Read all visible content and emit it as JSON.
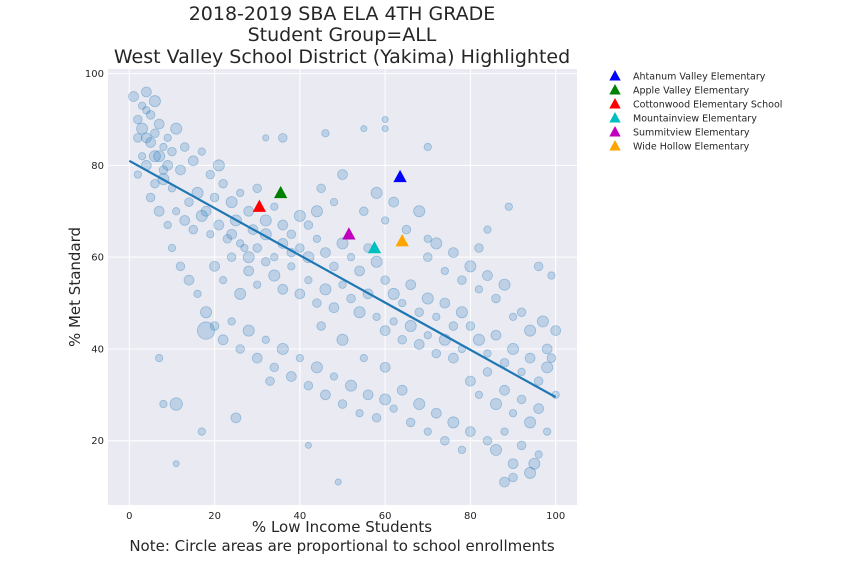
{
  "chart_data": {
    "type": "scatter",
    "title_lines": [
      "2018-2019 SBA ELA 4TH GRADE",
      "Student Group=ALL",
      "West Valley School District (Yakima) Highlighted"
    ],
    "xlabel": "% Low Income Students",
    "xlabel_note": "Note: Circle areas are proportional to school enrollments",
    "ylabel": "% Met Standard",
    "xlim": [
      -5,
      105
    ],
    "ylim": [
      6,
      101
    ],
    "xticks": [
      "0",
      "20",
      "40",
      "60",
      "80",
      "100"
    ],
    "yticks": [
      "20",
      "40",
      "60",
      "80",
      "100"
    ],
    "grid": true,
    "background_color": "#eaeaf2",
    "scatter_color": "#1f77b4",
    "scatter_opacity": 0.22,
    "regression_line": {
      "x": [
        0,
        100
      ],
      "y": [
        81,
        29.5
      ],
      "color": "#1f77b4"
    },
    "highlighted_schools": [
      {
        "name": "Ahtanum Valley Elementary",
        "x": 63.5,
        "y": 77.5,
        "color": "#0000ff"
      },
      {
        "name": "Apple Valley Elementary",
        "x": 35.5,
        "y": 74,
        "color": "#008000"
      },
      {
        "name": "Cottonwood Elementary School",
        "x": 30.5,
        "y": 71,
        "color": "#ff0000"
      },
      {
        "name": "Mountainview Elementary",
        "x": 57.5,
        "y": 62,
        "color": "#00bfbf"
      },
      {
        "name": "Summitview Elementary",
        "x": 51.5,
        "y": 65,
        "color": "#bf00bf"
      },
      {
        "name": "Wide Hollow Elementary",
        "x": 64,
        "y": 63.5,
        "color": "#ffa500"
      }
    ],
    "legend_placement": "outside-right-top",
    "schools": [
      [
        1,
        95,
        8
      ],
      [
        2,
        90,
        7
      ],
      [
        3,
        88,
        9
      ],
      [
        4,
        92,
        6
      ],
      [
        5,
        85,
        8
      ],
      [
        6,
        87,
        7
      ],
      [
        7,
        82,
        9
      ],
      [
        8,
        84,
        6
      ],
      [
        9,
        80,
        8
      ],
      [
        10,
        83,
        7
      ],
      [
        2,
        78,
        6
      ],
      [
        4,
        80,
        8
      ],
      [
        6,
        76,
        7
      ],
      [
        8,
        77,
        9
      ],
      [
        10,
        75,
        6
      ],
      [
        12,
        79,
        8
      ],
      [
        14,
        72,
        7
      ],
      [
        16,
        74,
        9
      ],
      [
        18,
        70,
        8
      ],
      [
        20,
        73,
        7
      ],
      [
        3,
        93,
        6
      ],
      [
        5,
        91,
        7
      ],
      [
        7,
        89,
        8
      ],
      [
        9,
        86,
        6
      ],
      [
        11,
        88,
        9
      ],
      [
        13,
        84,
        7
      ],
      [
        15,
        81,
        8
      ],
      [
        17,
        83,
        6
      ],
      [
        19,
        78,
        7
      ],
      [
        21,
        80,
        9
      ],
      [
        11,
        70,
        6
      ],
      [
        13,
        68,
        8
      ],
      [
        15,
        66,
        7
      ],
      [
        17,
        69,
        9
      ],
      [
        19,
        65,
        6
      ],
      [
        21,
        67,
        8
      ],
      [
        23,
        64,
        7
      ],
      [
        25,
        68,
        9
      ],
      [
        27,
        62,
        6
      ],
      [
        29,
        66,
        8
      ],
      [
        22,
        76,
        7
      ],
      [
        24,
        72,
        9
      ],
      [
        26,
        74,
        6
      ],
      [
        28,
        70,
        8
      ],
      [
        30,
        75,
        7
      ],
      [
        32,
        68,
        9
      ],
      [
        34,
        71,
        6
      ],
      [
        36,
        67,
        8
      ],
      [
        38,
        65,
        7
      ],
      [
        40,
        69,
        9
      ],
      [
        20,
        58,
        8
      ],
      [
        22,
        55,
        6
      ],
      [
        24,
        60,
        7
      ],
      [
        26,
        52,
        9
      ],
      [
        28,
        57,
        8
      ],
      [
        30,
        54,
        6
      ],
      [
        32,
        59,
        7
      ],
      [
        34,
        56,
        9
      ],
      [
        36,
        53,
        8
      ],
      [
        38,
        58,
        6
      ],
      [
        40,
        62,
        7
      ],
      [
        42,
        60,
        9
      ],
      [
        44,
        64,
        6
      ],
      [
        46,
        61,
        8
      ],
      [
        48,
        58,
        7
      ],
      [
        50,
        63,
        9
      ],
      [
        52,
        60,
        6
      ],
      [
        54,
        57,
        8
      ],
      [
        56,
        62,
        7
      ],
      [
        58,
        59,
        9
      ],
      [
        40,
        52,
        8
      ],
      [
        42,
        55,
        6
      ],
      [
        44,
        50,
        7
      ],
      [
        46,
        53,
        9
      ],
      [
        48,
        49,
        8
      ],
      [
        50,
        54,
        6
      ],
      [
        52,
        51,
        7
      ],
      [
        54,
        48,
        9
      ],
      [
        56,
        52,
        8
      ],
      [
        58,
        47,
        6
      ],
      [
        60,
        55,
        7
      ],
      [
        62,
        52,
        9
      ],
      [
        64,
        50,
        6
      ],
      [
        66,
        54,
        8
      ],
      [
        68,
        48,
        7
      ],
      [
        70,
        51,
        9
      ],
      [
        72,
        47,
        6
      ],
      [
        74,
        50,
        8
      ],
      [
        76,
        45,
        7
      ],
      [
        78,
        48,
        9
      ],
      [
        60,
        44,
        8
      ],
      [
        62,
        46,
        6
      ],
      [
        64,
        42,
        7
      ],
      [
        66,
        45,
        9
      ],
      [
        68,
        41,
        8
      ],
      [
        70,
        43,
        6
      ],
      [
        72,
        39,
        7
      ],
      [
        74,
        42,
        9
      ],
      [
        76,
        38,
        8
      ],
      [
        78,
        40,
        6
      ],
      [
        80,
        45,
        7
      ],
      [
        82,
        42,
        9
      ],
      [
        84,
        39,
        6
      ],
      [
        86,
        43,
        8
      ],
      [
        88,
        37,
        7
      ],
      [
        90,
        40,
        9
      ],
      [
        92,
        35,
        6
      ],
      [
        94,
        38,
        8
      ],
      [
        96,
        33,
        7
      ],
      [
        98,
        36,
        9
      ],
      [
        80,
        33,
        8
      ],
      [
        82,
        30,
        6
      ],
      [
        84,
        35,
        7
      ],
      [
        86,
        28,
        9
      ],
      [
        88,
        31,
        8
      ],
      [
        90,
        26,
        6
      ],
      [
        92,
        29,
        7
      ],
      [
        94,
        24,
        9
      ],
      [
        96,
        27,
        8
      ],
      [
        98,
        22,
        6
      ],
      [
        84,
        20,
        7
      ],
      [
        86,
        18,
        9
      ],
      [
        88,
        22,
        6
      ],
      [
        90,
        15,
        8
      ],
      [
        92,
        19,
        7
      ],
      [
        94,
        13,
        9
      ],
      [
        96,
        17,
        6
      ],
      [
        88,
        11,
        8
      ],
      [
        90,
        12,
        7
      ],
      [
        95,
        15,
        9
      ],
      [
        70,
        60,
        7
      ],
      [
        72,
        63,
        9
      ],
      [
        74,
        57,
        6
      ],
      [
        76,
        61,
        8
      ],
      [
        78,
        55,
        7
      ],
      [
        80,
        58,
        9
      ],
      [
        82,
        53,
        6
      ],
      [
        84,
        56,
        8
      ],
      [
        86,
        51,
        7
      ],
      [
        88,
        54,
        9
      ],
      [
        45,
        75,
        7
      ],
      [
        48,
        72,
        6
      ],
      [
        50,
        78,
        8
      ],
      [
        55,
        70,
        7
      ],
      [
        58,
        74,
        9
      ],
      [
        60,
        68,
        6
      ],
      [
        62,
        72,
        8
      ],
      [
        65,
        66,
        7
      ],
      [
        68,
        70,
        9
      ],
      [
        70,
        64,
        6
      ],
      [
        10,
        62,
        6
      ],
      [
        12,
        58,
        7
      ],
      [
        14,
        55,
        8
      ],
      [
        16,
        52,
        6
      ],
      [
        18,
        48,
        9
      ],
      [
        20,
        45,
        7
      ],
      [
        22,
        42,
        8
      ],
      [
        24,
        46,
        6
      ],
      [
        26,
        40,
        7
      ],
      [
        28,
        44,
        9
      ],
      [
        30,
        38,
        8
      ],
      [
        32,
        42,
        6
      ],
      [
        34,
        36,
        7
      ],
      [
        36,
        40,
        9
      ],
      [
        38,
        34,
        8
      ],
      [
        40,
        38,
        6
      ],
      [
        42,
        32,
        7
      ],
      [
        44,
        36,
        9
      ],
      [
        46,
        30,
        8
      ],
      [
        48,
        34,
        6
      ],
      [
        50,
        28,
        7
      ],
      [
        52,
        32,
        9
      ],
      [
        54,
        26,
        6
      ],
      [
        56,
        30,
        8
      ],
      [
        58,
        25,
        7
      ],
      [
        60,
        29,
        9
      ],
      [
        62,
        27,
        6
      ],
      [
        64,
        31,
        8
      ],
      [
        66,
        24,
        7
      ],
      [
        68,
        28,
        9
      ],
      [
        70,
        22,
        6
      ],
      [
        72,
        26,
        8
      ],
      [
        74,
        20,
        7
      ],
      [
        76,
        24,
        9
      ],
      [
        78,
        18,
        6
      ],
      [
        80,
        22,
        8
      ],
      [
        45,
        45,
        7
      ],
      [
        50,
        42,
        9
      ],
      [
        55,
        38,
        6
      ],
      [
        60,
        36,
        8
      ],
      [
        30,
        62,
        7
      ],
      [
        32,
        65,
        9
      ],
      [
        34,
        60,
        6
      ],
      [
        36,
        63,
        8
      ],
      [
        38,
        61,
        7
      ],
      [
        28,
        60,
        9
      ],
      [
        26,
        63,
        6
      ],
      [
        24,
        65,
        8
      ],
      [
        42,
        67,
        7
      ],
      [
        44,
        70,
        9
      ],
      [
        18,
        44,
        14
      ],
      [
        11,
        28,
        10
      ],
      [
        25,
        25,
        8
      ],
      [
        33,
        33,
        7
      ],
      [
        42,
        19,
        5
      ],
      [
        49,
        11,
        5
      ],
      [
        7,
        38,
        6
      ],
      [
        8,
        28,
        6
      ],
      [
        17,
        22,
        6
      ],
      [
        11,
        15,
        5
      ],
      [
        4,
        86,
        8
      ],
      [
        6,
        82,
        9
      ],
      [
        8,
        79,
        7
      ],
      [
        3,
        82,
        6
      ],
      [
        5,
        73,
        7
      ],
      [
        7,
        70,
        8
      ],
      [
        9,
        67,
        6
      ],
      [
        2,
        86,
        7
      ],
      [
        4,
        96,
        8
      ],
      [
        6,
        94,
        9
      ],
      [
        96,
        58,
        7
      ],
      [
        99,
        56,
        6
      ],
      [
        100,
        44,
        8
      ],
      [
        99,
        38,
        7
      ],
      [
        97,
        46,
        9
      ],
      [
        100,
        30,
        6
      ],
      [
        98,
        40,
        8
      ],
      [
        92,
        48,
        7
      ],
      [
        94,
        44,
        9
      ],
      [
        90,
        47,
        6
      ],
      [
        60,
        90,
        5
      ],
      [
        70,
        84,
        6
      ],
      [
        55,
        88,
        5
      ],
      [
        60,
        88,
        5
      ],
      [
        46,
        87,
        6
      ],
      [
        32,
        86,
        5
      ],
      [
        36,
        86,
        7
      ],
      [
        84,
        66,
        6
      ],
      [
        89,
        71,
        6
      ],
      [
        82,
        62,
        7
      ]
    ]
  }
}
